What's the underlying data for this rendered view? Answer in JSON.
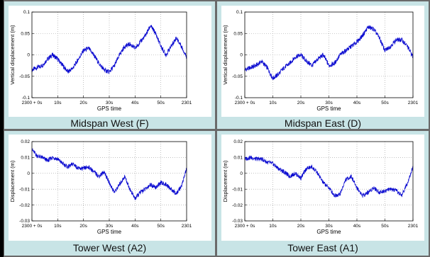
{
  "colors": {
    "background": "#6a6a6a",
    "panel": "#c8e4e6",
    "plot_border": "#000000",
    "line": "#0a0ad0",
    "left_bar": "#000000"
  },
  "chart_data": [
    {
      "type": "line",
      "caption": "Midspan West (F)",
      "xlabel": "GPS time",
      "ylabel": "Vertical displacement (m)",
      "xlim": [
        0,
        60
      ],
      "ylim": [
        -0.1,
        0.1
      ],
      "x_ticks": [
        0,
        10,
        20,
        30,
        40,
        50,
        60
      ],
      "x_tick_labels": [
        "2300 + 0s",
        "10s",
        "20s",
        "30s",
        "40s",
        "50s",
        "2301"
      ],
      "y_ticks": [
        -0.1,
        -0.05,
        0,
        0.05,
        0.1
      ],
      "y_tick_labels": [
        "-0.1",
        "-0.05",
        "0",
        "0.05",
        "0.1"
      ],
      "grid": true,
      "series": [
        {
          "x": [
            0,
            2,
            4,
            6,
            8,
            10,
            12,
            14,
            16,
            18,
            20,
            22,
            24,
            26,
            28,
            30,
            32,
            34,
            36,
            38,
            40,
            42,
            44,
            46,
            48,
            50,
            52,
            54,
            56,
            58,
            60
          ],
          "values": [
            -0.035,
            -0.03,
            -0.025,
            -0.01,
            0.0,
            -0.01,
            -0.025,
            -0.04,
            -0.03,
            -0.01,
            0.01,
            0.015,
            0.0,
            -0.02,
            -0.035,
            -0.04,
            -0.025,
            0.0,
            0.02,
            0.025,
            0.015,
            0.03,
            0.045,
            0.068,
            0.05,
            0.02,
            0.0,
            0.02,
            0.04,
            0.02,
            -0.005
          ]
        }
      ]
    },
    {
      "type": "line",
      "caption": "Midspan East (D)",
      "xlabel": "GPS time",
      "ylabel": "Vertical displacement (m)",
      "xlim": [
        0,
        60
      ],
      "ylim": [
        -0.1,
        0.1
      ],
      "x_ticks": [
        0,
        10,
        20,
        30,
        40,
        50,
        60
      ],
      "x_tick_labels": [
        "2300 + 0s",
        "10s",
        "20s",
        "30s",
        "40s",
        "50s",
        "2301"
      ],
      "y_ticks": [
        -0.1,
        -0.05,
        0,
        0.05,
        0.1
      ],
      "y_tick_labels": [
        "-0.1",
        "-0.05",
        "0",
        "0.05",
        "0.1"
      ],
      "grid": true,
      "series": [
        {
          "x": [
            0,
            2,
            4,
            6,
            8,
            10,
            12,
            14,
            16,
            18,
            20,
            22,
            24,
            26,
            28,
            30,
            32,
            34,
            36,
            38,
            40,
            42,
            44,
            46,
            48,
            50,
            52,
            54,
            56,
            58,
            60
          ],
          "values": [
            -0.035,
            -0.03,
            -0.025,
            -0.015,
            -0.03,
            -0.055,
            -0.045,
            -0.03,
            -0.02,
            -0.005,
            0.0,
            -0.015,
            -0.025,
            -0.01,
            0.0,
            -0.025,
            -0.02,
            0.0,
            0.01,
            0.02,
            0.03,
            0.045,
            0.065,
            0.06,
            0.04,
            0.01,
            0.02,
            0.035,
            0.035,
            0.02,
            -0.005
          ]
        }
      ]
    },
    {
      "type": "line",
      "caption": "Tower West (A2)",
      "xlabel": "GPS time",
      "ylabel": "Displacement (m)",
      "xlim": [
        0,
        60
      ],
      "ylim": [
        -0.03,
        0.02
      ],
      "x_ticks": [
        0,
        10,
        20,
        30,
        40,
        50,
        60
      ],
      "x_tick_labels": [
        "2300 + 0s",
        "10s",
        "20s",
        "30s",
        "40s",
        "50s",
        "2301"
      ],
      "y_ticks": [
        -0.03,
        -0.02,
        -0.01,
        0,
        0.01,
        0.02
      ],
      "y_tick_labels": [
        "-0.03",
        "-0.02",
        "-0.01",
        "0",
        "0.01",
        "0.02"
      ],
      "grid": true,
      "series": [
        {
          "x": [
            0,
            2,
            4,
            6,
            8,
            10,
            12,
            14,
            16,
            18,
            20,
            22,
            24,
            26,
            28,
            30,
            32,
            34,
            36,
            38,
            40,
            42,
            44,
            46,
            48,
            50,
            52,
            54,
            56,
            58,
            60
          ],
          "values": [
            0.015,
            0.011,
            0.01,
            0.008,
            0.01,
            0.009,
            0.006,
            0.004,
            0.006,
            0.003,
            0.003,
            0.004,
            0.001,
            -0.002,
            0.001,
            -0.006,
            -0.012,
            -0.007,
            -0.002,
            -0.01,
            -0.016,
            -0.012,
            -0.01,
            -0.007,
            -0.009,
            -0.006,
            -0.007,
            -0.01,
            -0.013,
            -0.008,
            0.003
          ]
        }
      ]
    },
    {
      "type": "line",
      "caption": "Tower East (A1)",
      "xlabel": "GPS time",
      "ylabel": "Displacement (m)",
      "xlim": [
        0,
        60
      ],
      "ylim": [
        -0.03,
        0.02
      ],
      "x_ticks": [
        0,
        10,
        20,
        30,
        40,
        50,
        60
      ],
      "x_tick_labels": [
        "2300 + 0s",
        "10s",
        "20s",
        "30s",
        "40s",
        "50s",
        "2301"
      ],
      "y_ticks": [
        -0.03,
        -0.02,
        -0.01,
        0,
        0.01,
        0.02
      ],
      "y_tick_labels": [
        "-0.03",
        "-0.02",
        "-0.01",
        "0",
        "0.01",
        "0.02"
      ],
      "grid": true,
      "series": [
        {
          "x": [
            0,
            2,
            4,
            6,
            8,
            10,
            12,
            14,
            16,
            18,
            20,
            22,
            24,
            26,
            28,
            30,
            32,
            34,
            36,
            38,
            40,
            42,
            44,
            46,
            48,
            50,
            52,
            54,
            56,
            58,
            60
          ],
          "values": [
            0.009,
            0.01,
            0.009,
            0.009,
            0.007,
            0.006,
            0.003,
            0.001,
            -0.002,
            0.0,
            -0.003,
            0.003,
            0.004,
            0.0,
            -0.006,
            -0.009,
            -0.014,
            -0.013,
            -0.004,
            -0.002,
            -0.009,
            -0.014,
            -0.012,
            -0.009,
            -0.012,
            -0.011,
            -0.01,
            -0.011,
            -0.014,
            -0.006,
            0.004
          ]
        }
      ]
    }
  ]
}
